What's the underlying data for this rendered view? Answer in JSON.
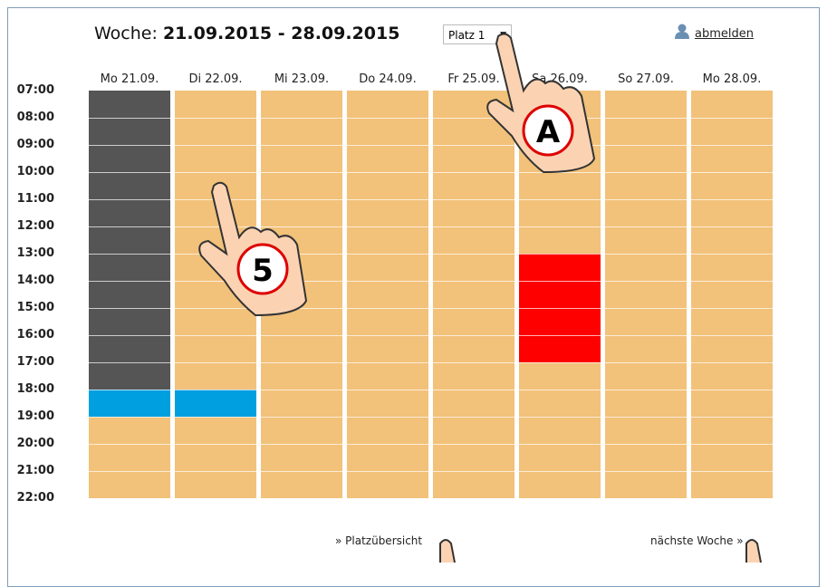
{
  "header": {
    "week_label": "Woche:",
    "week_range": "21.09.2015 - 28.09.2015",
    "select": "Platz 1",
    "logout": "abmelden"
  },
  "days": [
    "Mo 21.09.",
    "Di 22.09.",
    "Mi 23.09.",
    "Do 24.09.",
    "Fr 25.09.",
    "Sa 26.09.",
    "So 27.09.",
    "Mo 28.09."
  ],
  "times": [
    "07:00",
    "08:00",
    "09:00",
    "10:00",
    "11:00",
    "12:00",
    "13:00",
    "14:00",
    "15:00",
    "16:00",
    "17:00",
    "18:00",
    "19:00",
    "20:00",
    "21:00",
    "22:00"
  ],
  "footer": {
    "overview": "» Platzübersicht",
    "next": "nächste Woche »"
  },
  "annotations": [
    "A",
    "5"
  ]
}
